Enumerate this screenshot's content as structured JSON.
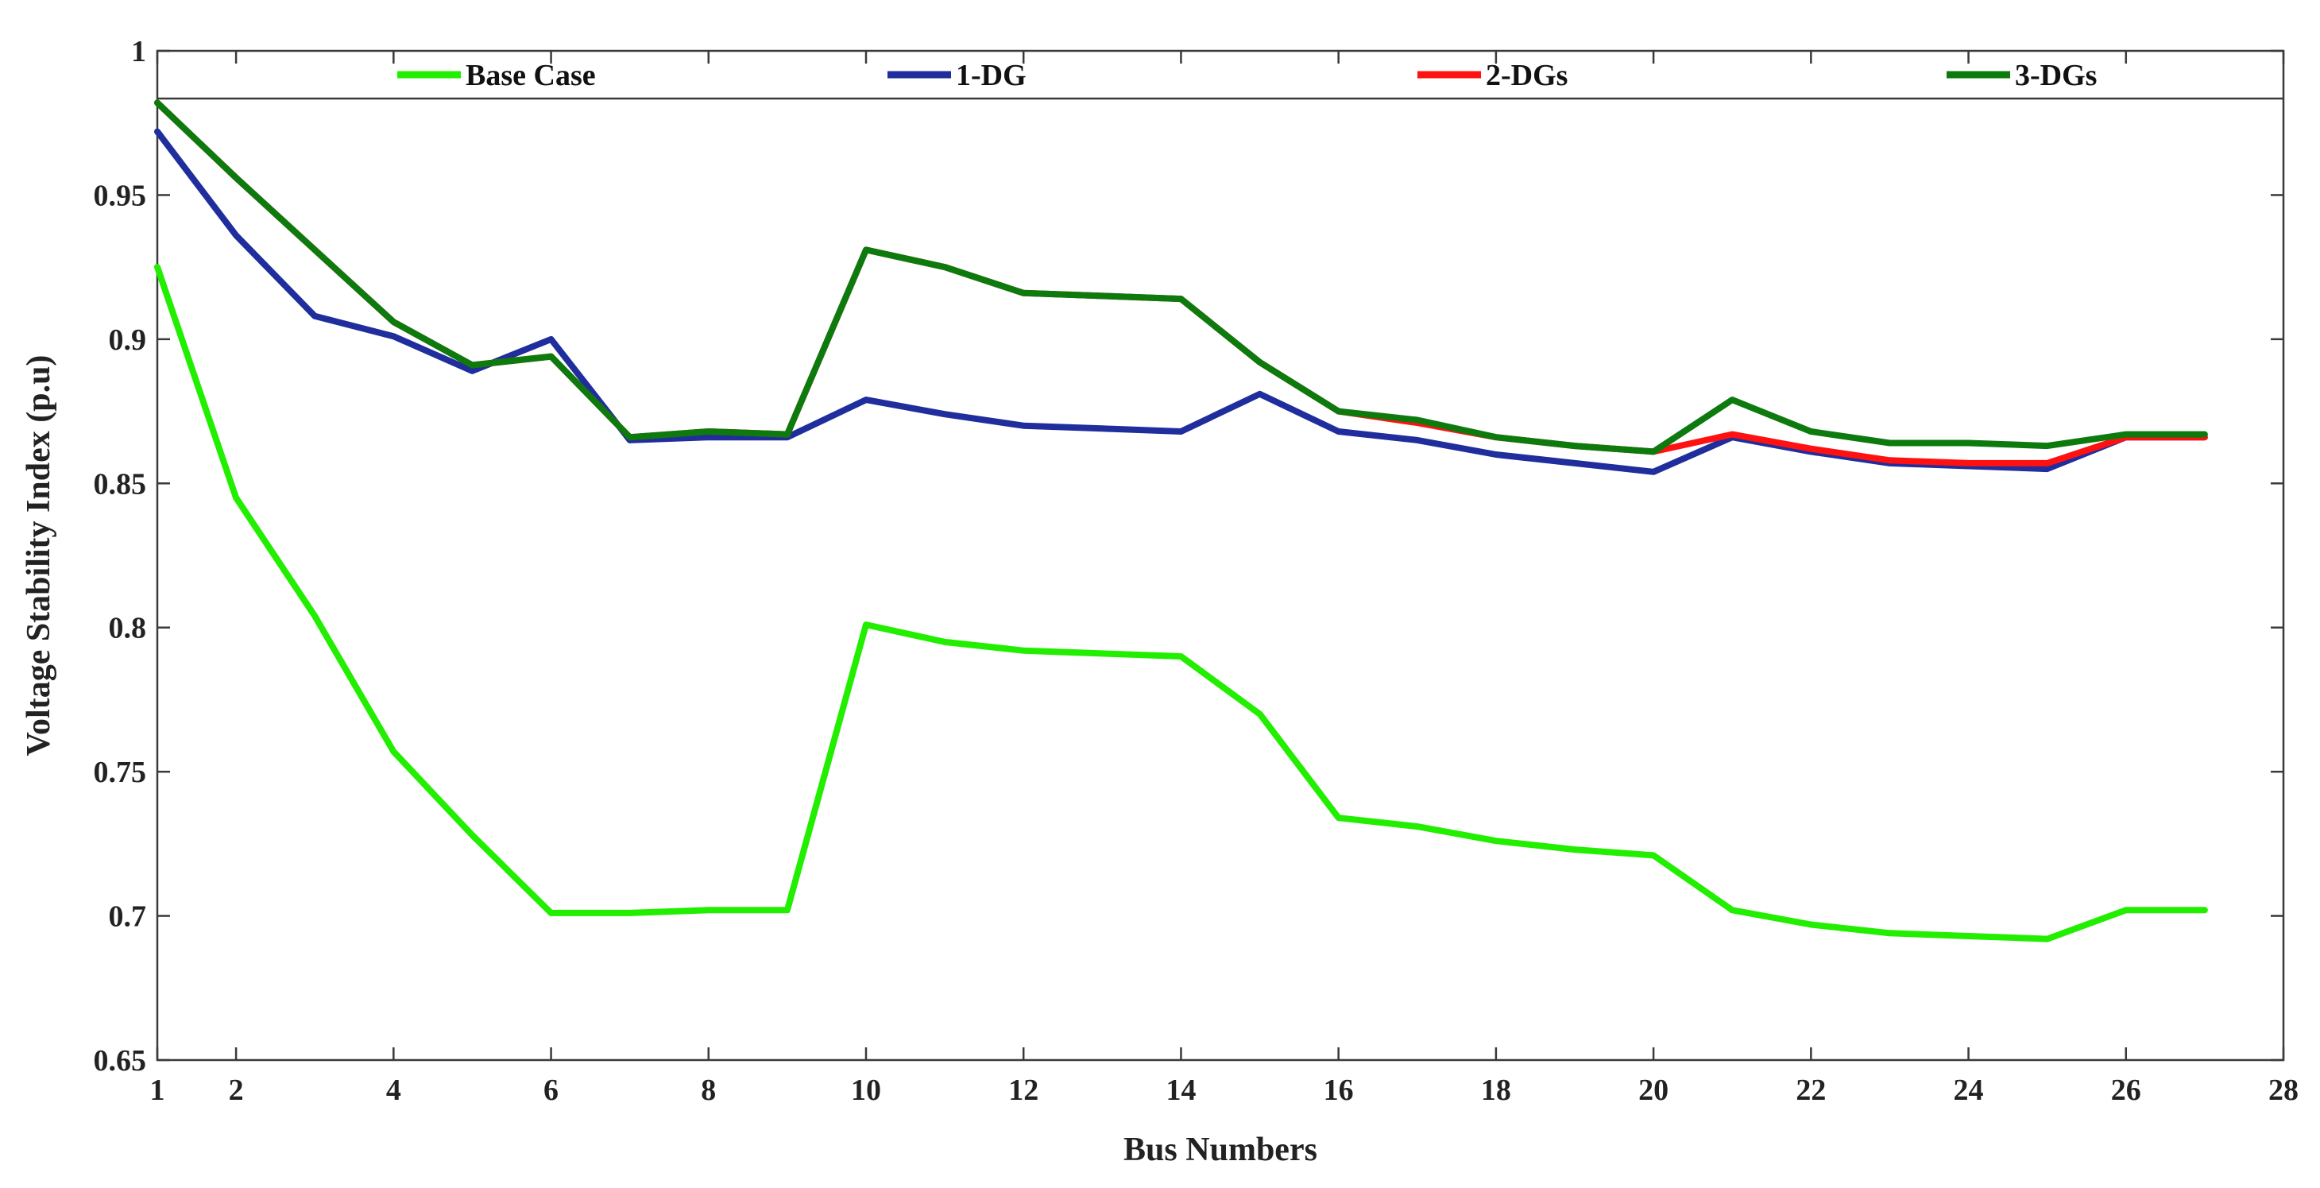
{
  "chart_data": {
    "type": "line",
    "title": "",
    "xlabel": "Bus Numbers",
    "ylabel": "Voltage Stability Index (p.u)",
    "xlim": [
      1,
      28
    ],
    "ylim": [
      0.65,
      1
    ],
    "xticks": [
      1,
      2,
      4,
      6,
      8,
      10,
      12,
      14,
      16,
      18,
      20,
      22,
      24,
      26,
      28
    ],
    "yticks": [
      0.65,
      0.7,
      0.75,
      0.8,
      0.85,
      0.9,
      0.95,
      1
    ],
    "ytick_labels": [
      "0.65",
      "0.7",
      "0.75",
      "0.8",
      "0.85",
      "0.9",
      "0.95",
      "1"
    ],
    "grid": false,
    "legend_position": "top",
    "x": [
      1,
      2,
      3,
      4,
      5,
      6,
      7,
      8,
      9,
      10,
      11,
      12,
      13,
      14,
      15,
      16,
      17,
      18,
      19,
      20,
      21,
      22,
      23,
      24,
      25,
      26,
      27
    ],
    "series": [
      {
        "name": "Base Case",
        "color": "#22ee00",
        "values": [
          0.925,
          0.845,
          0.804,
          0.757,
          0.728,
          0.701,
          0.701,
          0.702,
          0.702,
          0.801,
          0.795,
          0.792,
          0.791,
          0.79,
          0.77,
          0.734,
          0.731,
          0.726,
          0.723,
          0.721,
          0.702,
          0.697,
          0.694,
          0.693,
          0.692,
          0.702,
          0.702
        ]
      },
      {
        "name": "1-DG",
        "color": "#1f2e9c",
        "values": [
          0.972,
          0.936,
          0.908,
          0.901,
          0.889,
          0.9,
          0.865,
          0.866,
          0.866,
          0.879,
          0.874,
          0.87,
          0.869,
          0.868,
          0.881,
          0.868,
          0.865,
          0.86,
          0.857,
          0.854,
          0.866,
          0.861,
          0.857,
          0.856,
          0.855,
          0.866,
          0.866
        ]
      },
      {
        "name": "2-DGs",
        "color": "#ff1111",
        "values": [
          0.982,
          0.956,
          0.931,
          0.906,
          0.891,
          0.894,
          0.866,
          0.868,
          0.867,
          0.931,
          0.925,
          0.916,
          0.915,
          0.914,
          0.892,
          0.875,
          0.871,
          0.866,
          0.863,
          0.861,
          0.867,
          0.862,
          0.858,
          0.857,
          0.857,
          0.866,
          0.866
        ]
      },
      {
        "name": "3-DGs",
        "color": "#0d7a0d",
        "values": [
          0.982,
          0.956,
          0.931,
          0.906,
          0.891,
          0.894,
          0.866,
          0.868,
          0.867,
          0.931,
          0.925,
          0.916,
          0.915,
          0.914,
          0.892,
          0.875,
          0.872,
          0.866,
          0.863,
          0.861,
          0.879,
          0.868,
          0.864,
          0.864,
          0.863,
          0.867,
          0.867
        ]
      }
    ]
  }
}
